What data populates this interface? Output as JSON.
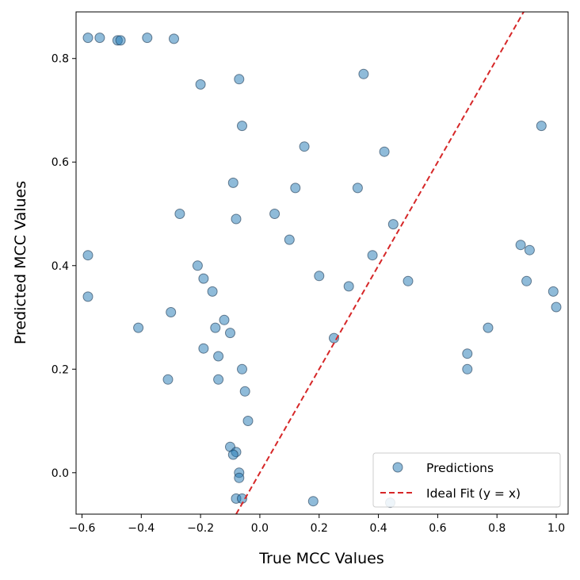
{
  "chart_data": {
    "type": "scatter",
    "title": "",
    "xlabel": "True MCC Values",
    "ylabel": "Predicted MCC Values",
    "xlim": [
      -0.62,
      1.04
    ],
    "ylim": [
      -0.08,
      0.89
    ],
    "xticks": [
      -0.6,
      -0.4,
      -0.2,
      0.0,
      0.2,
      0.4,
      0.6,
      0.8,
      1.0
    ],
    "xtick_labels": [
      "−0.6",
      "−0.4",
      "−0.2",
      "0.0",
      "0.2",
      "0.4",
      "0.6",
      "0.8",
      "1.0"
    ],
    "yticks": [
      0.0,
      0.2,
      0.4,
      0.6,
      0.8
    ],
    "ytick_labels": [
      "0.0",
      "0.2",
      "0.4",
      "0.6",
      "0.8"
    ],
    "grid": false,
    "legend_position": "lower-right",
    "series": [
      {
        "name": "Predictions",
        "kind": "scatter",
        "color": "#1f77b4",
        "edge_color": "#1a3550",
        "alpha": 0.5,
        "points": [
          [
            -0.58,
            0.84
          ],
          [
            -0.54,
            0.84
          ],
          [
            -0.48,
            0.835
          ],
          [
            -0.47,
            0.835
          ],
          [
            -0.38,
            0.84
          ],
          [
            -0.29,
            0.838
          ],
          [
            -0.58,
            0.42
          ],
          [
            -0.58,
            0.34
          ],
          [
            -0.41,
            0.28
          ],
          [
            -0.31,
            0.18
          ],
          [
            -0.3,
            0.31
          ],
          [
            -0.27,
            0.5
          ],
          [
            -0.2,
            0.75
          ],
          [
            -0.21,
            0.4
          ],
          [
            -0.19,
            0.375
          ],
          [
            -0.19,
            0.24
          ],
          [
            -0.16,
            0.35
          ],
          [
            -0.15,
            0.28
          ],
          [
            -0.14,
            0.225
          ],
          [
            -0.14,
            0.18
          ],
          [
            -0.12,
            0.295
          ],
          [
            -0.1,
            0.27
          ],
          [
            -0.09,
            0.56
          ],
          [
            -0.08,
            0.49
          ],
          [
            -0.07,
            0.76
          ],
          [
            -0.06,
            0.67
          ],
          [
            -0.06,
            0.2
          ],
          [
            -0.05,
            0.157
          ],
          [
            -0.04,
            0.1
          ],
          [
            -0.1,
            0.05
          ],
          [
            -0.08,
            0.04
          ],
          [
            -0.09,
            0.035
          ],
          [
            -0.07,
            0.0
          ],
          [
            -0.07,
            -0.01
          ],
          [
            -0.08,
            -0.05
          ],
          [
            -0.06,
            -0.05
          ],
          [
            0.18,
            -0.055
          ],
          [
            0.44,
            -0.058
          ],
          [
            0.35,
            0.77
          ],
          [
            0.7,
            0.2
          ],
          [
            0.7,
            0.23
          ],
          [
            0.77,
            0.28
          ],
          [
            0.88,
            0.44
          ],
          [
            0.9,
            0.37
          ],
          [
            1.0,
            0.32
          ],
          [
            0.99,
            0.35
          ],
          [
            0.95,
            0.67
          ],
          [
            0.91,
            0.43
          ],
          [
            0.05,
            0.5
          ],
          [
            0.1,
            0.45
          ],
          [
            0.12,
            0.55
          ],
          [
            0.15,
            0.63
          ],
          [
            0.2,
            0.38
          ],
          [
            0.25,
            0.26
          ],
          [
            0.3,
            0.36
          ],
          [
            0.33,
            0.55
          ],
          [
            0.38,
            0.42
          ],
          [
            0.42,
            0.62
          ],
          [
            0.45,
            0.48
          ],
          [
            0.5,
            0.37
          ]
        ]
      },
      {
        "name": "Ideal Fit (y = x)",
        "kind": "line",
        "color": "#d62728",
        "dash": "dashed",
        "x": [
          -0.08,
          0.89
        ],
        "y": [
          -0.08,
          0.89
        ]
      }
    ]
  }
}
